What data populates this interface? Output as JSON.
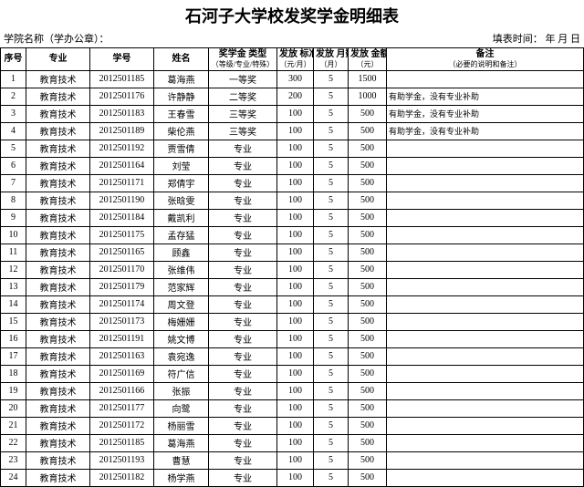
{
  "title": "石河子大学校发奖学金明细表",
  "meta_left": "学院名称（学办公章）：",
  "meta_right": "填表时间：      年   月   日",
  "headers": {
    "seq": "序号",
    "major": "专业",
    "id": "学号",
    "name": "姓名",
    "type": "奖学金\n类型",
    "type_sub": "（等级/专业/特殊）",
    "std": "发放\n标准",
    "std_sub": "（元/月）",
    "months": "发放\n月数",
    "months_sub": "（月）",
    "amount": "发放\n金额",
    "amount_sub": "（元）",
    "note": "备注",
    "note_sub": "（必要的说明和备注）"
  },
  "rows": [
    {
      "seq": "1",
      "major": "教育技术",
      "id": "2012501185",
      "name": "葛海燕",
      "type": "一等奖",
      "std": "300",
      "months": "5",
      "amount": "1500",
      "note": ""
    },
    {
      "seq": "2",
      "major": "教育技术",
      "id": "2012501176",
      "name": "许静静",
      "type": "二等奖",
      "std": "200",
      "months": "5",
      "amount": "1000",
      "note": "有助学金，没有专业补助"
    },
    {
      "seq": "3",
      "major": "教育技术",
      "id": "2012501183",
      "name": "王春雪",
      "type": "三等奖",
      "std": "100",
      "months": "5",
      "amount": "500",
      "note": "有助学金，没有专业补助"
    },
    {
      "seq": "4",
      "major": "教育技术",
      "id": "2012501189",
      "name": "柴伦燕",
      "type": "三等奖",
      "std": "100",
      "months": "5",
      "amount": "500",
      "note": "有助学金，没有专业补助"
    },
    {
      "seq": "5",
      "major": "教育技术",
      "id": "2012501192",
      "name": "贾雪倩",
      "type": "专业",
      "std": "100",
      "months": "5",
      "amount": "500",
      "note": ""
    },
    {
      "seq": "6",
      "major": "教育技术",
      "id": "2012501164",
      "name": "刘莹",
      "type": "专业",
      "std": "100",
      "months": "5",
      "amount": "500",
      "note": ""
    },
    {
      "seq": "7",
      "major": "教育技术",
      "id": "2012501171",
      "name": "郑倩宇",
      "type": "专业",
      "std": "100",
      "months": "5",
      "amount": "500",
      "note": ""
    },
    {
      "seq": "8",
      "major": "教育技术",
      "id": "2012501190",
      "name": "张晗雯",
      "type": "专业",
      "std": "100",
      "months": "5",
      "amount": "500",
      "note": ""
    },
    {
      "seq": "9",
      "major": "教育技术",
      "id": "2012501184",
      "name": "戴凯利",
      "type": "专业",
      "std": "100",
      "months": "5",
      "amount": "500",
      "note": ""
    },
    {
      "seq": "10",
      "major": "教育技术",
      "id": "2012501175",
      "name": "孟存猛",
      "type": "专业",
      "std": "100",
      "months": "5",
      "amount": "500",
      "note": ""
    },
    {
      "seq": "11",
      "major": "教育技术",
      "id": "2012501165",
      "name": "顾鑫",
      "type": "专业",
      "std": "100",
      "months": "5",
      "amount": "500",
      "note": ""
    },
    {
      "seq": "12",
      "major": "教育技术",
      "id": "2012501170",
      "name": "张维伟",
      "type": "专业",
      "std": "100",
      "months": "5",
      "amount": "500",
      "note": ""
    },
    {
      "seq": "13",
      "major": "教育技术",
      "id": "2012501179",
      "name": "范家辉",
      "type": "专业",
      "std": "100",
      "months": "5",
      "amount": "500",
      "note": ""
    },
    {
      "seq": "14",
      "major": "教育技术",
      "id": "2012501174",
      "name": "周文登",
      "type": "专业",
      "std": "100",
      "months": "5",
      "amount": "500",
      "note": ""
    },
    {
      "seq": "15",
      "major": "教育技术",
      "id": "2012501173",
      "name": "梅姗姗",
      "type": "专业",
      "std": "100",
      "months": "5",
      "amount": "500",
      "note": ""
    },
    {
      "seq": "16",
      "major": "教育技术",
      "id": "2012501191",
      "name": "姚文博",
      "type": "专业",
      "std": "100",
      "months": "5",
      "amount": "500",
      "note": ""
    },
    {
      "seq": "17",
      "major": "教育技术",
      "id": "2012501163",
      "name": "袁宛逸",
      "type": "专业",
      "std": "100",
      "months": "5",
      "amount": "500",
      "note": ""
    },
    {
      "seq": "18",
      "major": "教育技术",
      "id": "2012501169",
      "name": "符广信",
      "type": "专业",
      "std": "100",
      "months": "5",
      "amount": "500",
      "note": ""
    },
    {
      "seq": "19",
      "major": "教育技术",
      "id": "2012501166",
      "name": "张振",
      "type": "专业",
      "std": "100",
      "months": "5",
      "amount": "500",
      "note": ""
    },
    {
      "seq": "20",
      "major": "教育技术",
      "id": "2012501177",
      "name": "向鹭",
      "type": "专业",
      "std": "100",
      "months": "5",
      "amount": "500",
      "note": ""
    },
    {
      "seq": "21",
      "major": "教育技术",
      "id": "2012501172",
      "name": "杨丽雪",
      "type": "专业",
      "std": "100",
      "months": "5",
      "amount": "500",
      "note": ""
    },
    {
      "seq": "22",
      "major": "教育技术",
      "id": "2012501185",
      "name": "葛海燕",
      "type": "专业",
      "std": "100",
      "months": "5",
      "amount": "500",
      "note": ""
    },
    {
      "seq": "23",
      "major": "教育技术",
      "id": "2012501193",
      "name": "曹慧",
      "type": "专业",
      "std": "100",
      "months": "5",
      "amount": "500",
      "note": ""
    },
    {
      "seq": "24",
      "major": "教育技术",
      "id": "2012501182",
      "name": "杨学燕",
      "type": "专业",
      "std": "100",
      "months": "5",
      "amount": "500",
      "note": ""
    }
  ]
}
